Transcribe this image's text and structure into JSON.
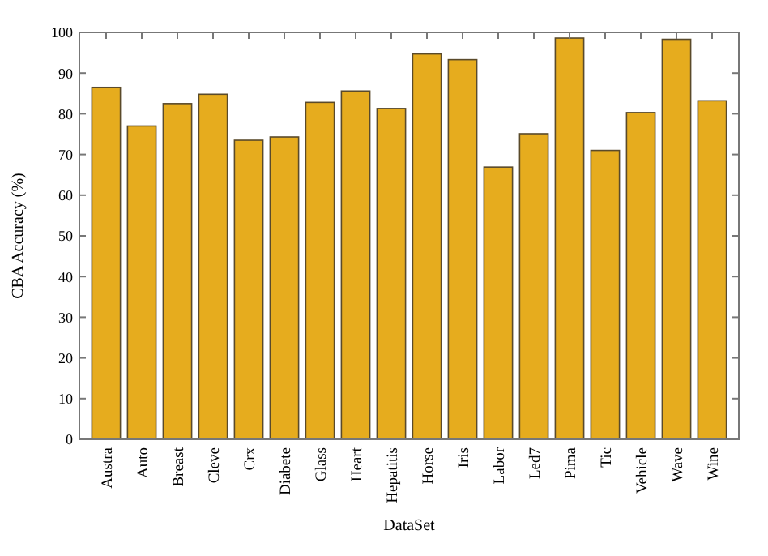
{
  "chart_data": {
    "type": "bar",
    "xlabel": "DataSet",
    "ylabel": "CBA Accuracy (%)",
    "categories": [
      "Austra",
      "Auto",
      "Breast",
      "Cleve",
      "Crx",
      "Diabete",
      "Glass",
      "Heart",
      "Hepatitis",
      "Horse",
      "Iris",
      "Labor",
      "Led7",
      "Pima",
      "Tic",
      "Vehicle",
      "Wave",
      "Wine"
    ],
    "values": [
      86.5,
      77,
      82.5,
      84.8,
      73.5,
      74.3,
      82.8,
      85.6,
      81.3,
      94.7,
      93.3,
      66.9,
      75.1,
      98.6,
      71,
      80.3,
      98.3,
      83.2
    ],
    "color": "#e6ac1e",
    "ylim": [
      0,
      100
    ],
    "yticks": [
      0,
      10,
      20,
      30,
      40,
      50,
      60,
      70,
      80,
      90,
      100
    ]
  }
}
